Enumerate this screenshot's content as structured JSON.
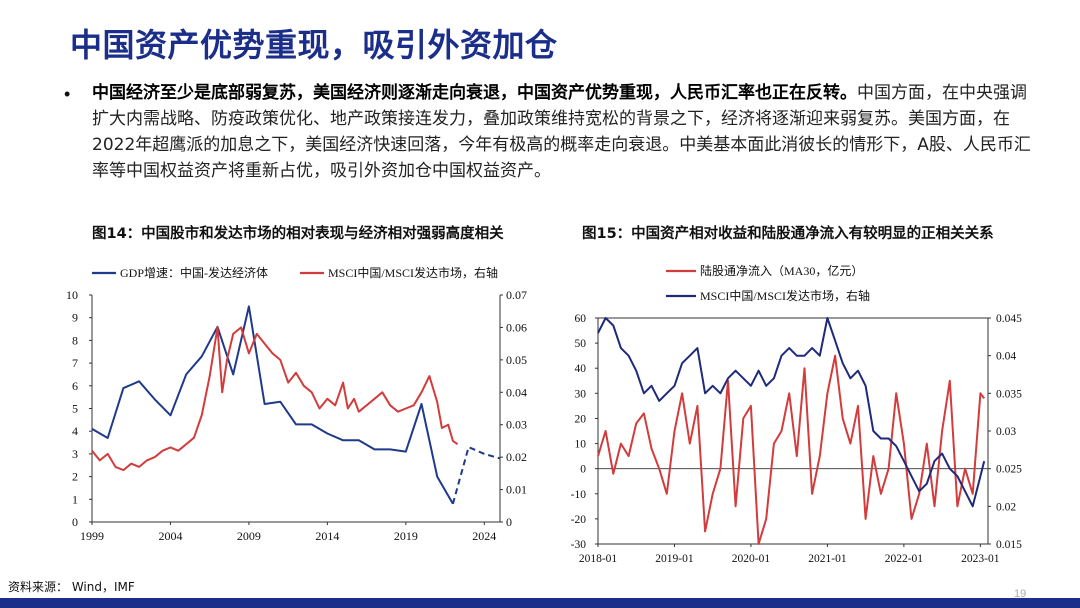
{
  "page": {
    "title": "中国资产优势重现，吸引外资加仓",
    "bullet_bold": "中国经济至少是底部弱复苏，美国经济则逐渐走向衰退，中国资产优势重现，人民币汇率也正在反转。",
    "bullet_rest": "中国方面，在中央强调扩大内需战略、防疫政策优化、地产政策接连发力，叠加政策维持宽松的背景之下，经济将逐渐迎来弱复苏。美国方面，在2022年超鹰派的加息之下，美国经济快速回落，今年有极高的概率走向衰退。中美基本面此消彼长的情形下，A股、人民币汇率等中国权益资产将重新占优，吸引外资加仓中国权益资产。",
    "source": "资料来源： Wind，IMF",
    "page_number": "19",
    "accent_color": "#1a2e8a"
  },
  "chart_data": [
    {
      "type": "line",
      "title": "图14：中国股市和发达市场的相对表现与经济相对强弱高度相关",
      "x_ticks": [
        "1999",
        "2004",
        "2009",
        "2014",
        "2019",
        "2024"
      ],
      "xlim": [
        1999,
        2025
      ],
      "ylim_left": [
        0,
        10
      ],
      "y_ticks_left": [
        "0",
        "1",
        "2",
        "3",
        "4",
        "5",
        "6",
        "7",
        "8",
        "9",
        "10"
      ],
      "ylim_right": [
        0,
        0.07
      ],
      "y_ticks_right": [
        "0",
        "0.01",
        "0.02",
        "0.03",
        "0.04",
        "0.05",
        "0.06",
        "0.07"
      ],
      "legend": "top",
      "series": [
        {
          "name": "GDP增速：中国-发达经济体",
          "axis": "left",
          "color": "#1f3a8a",
          "x": [
            1999,
            2000,
            2001,
            2002,
            2003,
            2004,
            2005,
            2006,
            2007,
            2008,
            2009,
            2010,
            2011,
            2012,
            2013,
            2014,
            2015,
            2016,
            2017,
            2018,
            2019,
            2020,
            2021,
            2022
          ],
          "values": [
            4.1,
            3.7,
            5.9,
            6.2,
            5.4,
            4.7,
            6.5,
            7.3,
            8.6,
            6.5,
            9.5,
            5.2,
            5.3,
            4.3,
            4.3,
            3.9,
            3.6,
            3.6,
            3.2,
            3.2,
            3.1,
            5.2,
            2.0,
            0.8
          ],
          "forecast_x": [
            2022,
            2023,
            2024,
            2025
          ],
          "forecast_values": [
            0.8,
            3.3,
            3.0,
            2.8
          ]
        },
        {
          "name": "MSCI中国/MSCI发达市场，右轴",
          "axis": "right",
          "color": "#d23c3c",
          "x": [
            1999,
            1999.5,
            2000,
            2000.5,
            2001,
            2001.5,
            2002,
            2002.5,
            2003,
            2003.5,
            2004,
            2004.5,
            2005,
            2005.5,
            2006,
            2006.5,
            2007,
            2007.3,
            2007.6,
            2008,
            2008.5,
            2009,
            2009.5,
            2010,
            2010.5,
            2011,
            2011.5,
            2012,
            2012.5,
            2013,
            2013.5,
            2014,
            2014.5,
            2015,
            2015.3,
            2015.7,
            2016,
            2016.5,
            2017,
            2017.5,
            2018,
            2018.5,
            2019,
            2019.5,
            2020,
            2020.5,
            2021,
            2021.3,
            2021.7,
            2022,
            2022.3
          ],
          "values": [
            0.022,
            0.019,
            0.021,
            0.017,
            0.016,
            0.018,
            0.017,
            0.019,
            0.02,
            0.022,
            0.023,
            0.022,
            0.024,
            0.026,
            0.033,
            0.045,
            0.06,
            0.04,
            0.05,
            0.058,
            0.06,
            0.052,
            0.058,
            0.055,
            0.052,
            0.05,
            0.043,
            0.046,
            0.042,
            0.04,
            0.035,
            0.038,
            0.036,
            0.043,
            0.035,
            0.038,
            0.034,
            0.036,
            0.038,
            0.04,
            0.036,
            0.034,
            0.035,
            0.036,
            0.04,
            0.045,
            0.037,
            0.029,
            0.03,
            0.025,
            0.024
          ]
        }
      ]
    },
    {
      "type": "line",
      "title": "图15：中国资产相对收益和陆股通净流入有较明显的正相关关系",
      "x_ticks": [
        "2018-01",
        "2019-01",
        "2020-01",
        "2021-01",
        "2022-01",
        "2023-01"
      ],
      "xlim": [
        2018.0,
        2023.1
      ],
      "ylim_left": [
        -30,
        60
      ],
      "y_ticks_left": [
        "-30",
        "-20",
        "-10",
        "0",
        "10",
        "20",
        "30",
        "40",
        "50",
        "60"
      ],
      "ylim_right": [
        0.015,
        0.045
      ],
      "y_ticks_right": [
        "0.015",
        "0.02",
        "0.025",
        "0.03",
        "0.035",
        "0.04",
        "0.045"
      ],
      "legend": "top-left",
      "series": [
        {
          "name": "陆股通净流入（MA30，亿元）",
          "axis": "left",
          "color": "#d23c3c",
          "x": [
            2018.0,
            2018.1,
            2018.2,
            2018.3,
            2018.4,
            2018.5,
            2018.6,
            2018.7,
            2018.8,
            2018.9,
            2019.0,
            2019.1,
            2019.2,
            2019.3,
            2019.4,
            2019.5,
            2019.6,
            2019.7,
            2019.8,
            2019.9,
            2020.0,
            2020.1,
            2020.2,
            2020.3,
            2020.4,
            2020.5,
            2020.6,
            2020.7,
            2020.8,
            2020.9,
            2021.0,
            2021.1,
            2021.2,
            2021.3,
            2021.4,
            2021.5,
            2021.6,
            2021.7,
            2021.8,
            2021.9,
            2022.0,
            2022.1,
            2022.2,
            2022.3,
            2022.4,
            2022.5,
            2022.6,
            2022.7,
            2022.8,
            2022.9,
            2023.0,
            2023.05
          ],
          "values": [
            5,
            15,
            -2,
            10,
            5,
            18,
            22,
            8,
            0,
            -10,
            15,
            30,
            10,
            25,
            -25,
            -10,
            0,
            35,
            -15,
            20,
            25,
            -30,
            -20,
            10,
            15,
            30,
            5,
            40,
            -10,
            5,
            30,
            45,
            20,
            10,
            25,
            -20,
            5,
            -10,
            0,
            30,
            10,
            -20,
            -10,
            10,
            -15,
            15,
            35,
            -15,
            0,
            -10,
            30,
            28
          ]
        },
        {
          "name": "MSCI中国/MSCI发达市场，右轴",
          "axis": "right",
          "color": "#1f2a7a",
          "x": [
            2018.0,
            2018.1,
            2018.2,
            2018.3,
            2018.4,
            2018.5,
            2018.6,
            2018.7,
            2018.8,
            2018.9,
            2019.0,
            2019.1,
            2019.2,
            2019.3,
            2019.4,
            2019.5,
            2019.6,
            2019.7,
            2019.8,
            2019.9,
            2020.0,
            2020.1,
            2020.2,
            2020.3,
            2020.4,
            2020.5,
            2020.6,
            2020.7,
            2020.8,
            2020.9,
            2021.0,
            2021.1,
            2021.2,
            2021.3,
            2021.4,
            2021.5,
            2021.6,
            2021.7,
            2021.8,
            2021.9,
            2022.0,
            2022.1,
            2022.2,
            2022.3,
            2022.4,
            2022.5,
            2022.6,
            2022.7,
            2022.8,
            2022.9,
            2023.0,
            2023.05
          ],
          "values": [
            0.043,
            0.045,
            0.044,
            0.041,
            0.04,
            0.038,
            0.035,
            0.036,
            0.034,
            0.035,
            0.036,
            0.039,
            0.04,
            0.041,
            0.035,
            0.036,
            0.035,
            0.037,
            0.038,
            0.037,
            0.036,
            0.038,
            0.036,
            0.037,
            0.04,
            0.041,
            0.04,
            0.04,
            0.041,
            0.04,
            0.045,
            0.042,
            0.039,
            0.037,
            0.038,
            0.036,
            0.03,
            0.029,
            0.029,
            0.028,
            0.026,
            0.024,
            0.022,
            0.023,
            0.026,
            0.027,
            0.025,
            0.024,
            0.022,
            0.02,
            0.024,
            0.026
          ]
        }
      ]
    }
  ]
}
